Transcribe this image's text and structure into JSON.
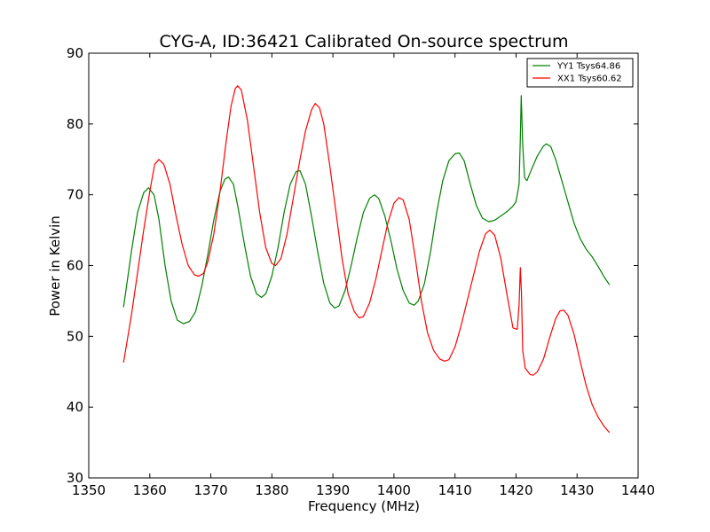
{
  "chart_data": {
    "type": "line",
    "title": "CYG-A, ID:36421 Calibrated On-source spectrum",
    "xlabel": "Frequency (MHz)",
    "ylabel": "Power in Kelvin",
    "xlim": [
      1350,
      1440
    ],
    "ylim": [
      30,
      90
    ],
    "xticks": [
      1350,
      1360,
      1370,
      1380,
      1390,
      1400,
      1410,
      1420,
      1430,
      1440
    ],
    "yticks": [
      30,
      40,
      50,
      60,
      70,
      80,
      90
    ],
    "grid": false,
    "legend": "top-right",
    "series": [
      {
        "name": "YY1 Tsys64.86",
        "color": "#008000",
        "points": [
          [
            1355.7,
            54.1
          ],
          [
            1357.0,
            62.0
          ],
          [
            1358.0,
            67.5
          ],
          [
            1359.0,
            70.3
          ],
          [
            1359.8,
            71.0
          ],
          [
            1360.7,
            70.0
          ],
          [
            1361.5,
            66.5
          ],
          [
            1362.5,
            60.0
          ],
          [
            1363.5,
            55.0
          ],
          [
            1364.5,
            52.3
          ],
          [
            1365.5,
            51.8
          ],
          [
            1366.5,
            52.1
          ],
          [
            1367.5,
            53.5
          ],
          [
            1368.5,
            57.0
          ],
          [
            1369.5,
            61.5
          ],
          [
            1370.5,
            66.5
          ],
          [
            1371.5,
            70.5
          ],
          [
            1372.3,
            72.2
          ],
          [
            1372.9,
            72.5
          ],
          [
            1373.7,
            71.5
          ],
          [
            1374.5,
            68.0
          ],
          [
            1375.5,
            63.0
          ],
          [
            1376.5,
            58.5
          ],
          [
            1377.5,
            56.0
          ],
          [
            1378.3,
            55.5
          ],
          [
            1379.0,
            56.0
          ],
          [
            1380.0,
            58.5
          ],
          [
            1381.0,
            62.5
          ],
          [
            1382.0,
            67.5
          ],
          [
            1383.0,
            71.5
          ],
          [
            1384.0,
            73.3
          ],
          [
            1384.6,
            73.4
          ],
          [
            1385.5,
            71.5
          ],
          [
            1386.5,
            67.0
          ],
          [
            1387.5,
            62.0
          ],
          [
            1388.5,
            57.5
          ],
          [
            1389.5,
            54.7
          ],
          [
            1390.3,
            54.0
          ],
          [
            1391.0,
            54.3
          ],
          [
            1392.0,
            56.5
          ],
          [
            1393.0,
            60.0
          ],
          [
            1394.0,
            64.0
          ],
          [
            1395.0,
            67.5
          ],
          [
            1396.0,
            69.5
          ],
          [
            1396.8,
            70.0
          ],
          [
            1397.5,
            69.5
          ],
          [
            1398.5,
            67.0
          ],
          [
            1399.5,
            63.5
          ],
          [
            1400.5,
            59.5
          ],
          [
            1401.5,
            56.5
          ],
          [
            1402.5,
            54.7
          ],
          [
            1403.3,
            54.4
          ],
          [
            1404.0,
            55.0
          ],
          [
            1405.0,
            57.5
          ],
          [
            1406.0,
            62.0
          ],
          [
            1407.0,
            67.5
          ],
          [
            1408.0,
            72.0
          ],
          [
            1409.0,
            74.8
          ],
          [
            1410.0,
            75.8
          ],
          [
            1410.7,
            75.9
          ],
          [
            1411.5,
            74.8
          ],
          [
            1412.5,
            71.5
          ],
          [
            1413.5,
            68.5
          ],
          [
            1414.5,
            66.7
          ],
          [
            1415.5,
            66.2
          ],
          [
            1416.5,
            66.4
          ],
          [
            1417.5,
            67.0
          ],
          [
            1418.5,
            67.6
          ],
          [
            1419.5,
            68.4
          ],
          [
            1420.0,
            69.0
          ],
          [
            1420.5,
            71.5
          ],
          [
            1420.7,
            78.0
          ],
          [
            1420.85,
            84.0
          ],
          [
            1421.1,
            77.0
          ],
          [
            1421.4,
            72.4
          ],
          [
            1421.8,
            72.0
          ],
          [
            1422.5,
            73.5
          ],
          [
            1423.5,
            75.5
          ],
          [
            1424.5,
            76.9
          ],
          [
            1425.0,
            77.2
          ],
          [
            1425.7,
            76.8
          ],
          [
            1426.5,
            75.0
          ],
          [
            1427.5,
            72.0
          ],
          [
            1428.5,
            69.0
          ],
          [
            1429.5,
            66.0
          ],
          [
            1430.5,
            63.8
          ],
          [
            1431.5,
            62.3
          ],
          [
            1432.5,
            61.2
          ],
          [
            1433.5,
            59.8
          ],
          [
            1434.5,
            58.3
          ],
          [
            1435.3,
            57.3
          ]
        ]
      },
      {
        "name": "XX1 Tsys60.62",
        "color": "#ff0000",
        "points": [
          [
            1355.7,
            46.3
          ],
          [
            1357.0,
            53.0
          ],
          [
            1358.0,
            59.0
          ],
          [
            1359.0,
            65.0
          ],
          [
            1360.0,
            70.5
          ],
          [
            1360.8,
            74.3
          ],
          [
            1361.5,
            75.0
          ],
          [
            1362.3,
            74.3
          ],
          [
            1363.3,
            71.5
          ],
          [
            1364.3,
            67.0
          ],
          [
            1365.3,
            63.0
          ],
          [
            1366.3,
            60.0
          ],
          [
            1367.3,
            58.7
          ],
          [
            1368.0,
            58.5
          ],
          [
            1368.8,
            58.9
          ],
          [
            1369.5,
            60.5
          ],
          [
            1370.5,
            64.5
          ],
          [
            1371.5,
            70.5
          ],
          [
            1372.5,
            77.5
          ],
          [
            1373.3,
            82.5
          ],
          [
            1374.0,
            85.0
          ],
          [
            1374.4,
            85.4
          ],
          [
            1375.0,
            84.8
          ],
          [
            1376.0,
            80.5
          ],
          [
            1377.0,
            74.0
          ],
          [
            1378.0,
            67.5
          ],
          [
            1379.0,
            62.5
          ],
          [
            1380.0,
            60.3
          ],
          [
            1380.6,
            60.0
          ],
          [
            1381.5,
            61.0
          ],
          [
            1382.5,
            64.5
          ],
          [
            1383.5,
            69.5
          ],
          [
            1384.5,
            74.5
          ],
          [
            1385.5,
            79.0
          ],
          [
            1386.5,
            82.0
          ],
          [
            1387.1,
            82.9
          ],
          [
            1387.8,
            82.3
          ],
          [
            1388.5,
            80.0
          ],
          [
            1389.5,
            74.0
          ],
          [
            1390.5,
            67.5
          ],
          [
            1391.5,
            61.0
          ],
          [
            1392.5,
            56.0
          ],
          [
            1393.5,
            53.5
          ],
          [
            1394.3,
            52.6
          ],
          [
            1395.0,
            52.8
          ],
          [
            1396.0,
            54.7
          ],
          [
            1397.0,
            58.0
          ],
          [
            1398.0,
            62.0
          ],
          [
            1399.0,
            66.0
          ],
          [
            1400.0,
            68.8
          ],
          [
            1400.8,
            69.6
          ],
          [
            1401.5,
            69.3
          ],
          [
            1402.5,
            66.5
          ],
          [
            1403.5,
            61.0
          ],
          [
            1404.5,
            55.0
          ],
          [
            1405.5,
            50.5
          ],
          [
            1406.5,
            48.0
          ],
          [
            1407.5,
            46.8
          ],
          [
            1408.3,
            46.5
          ],
          [
            1409.0,
            46.7
          ],
          [
            1410.0,
            48.5
          ],
          [
            1411.0,
            51.5
          ],
          [
            1412.0,
            55.0
          ],
          [
            1413.0,
            58.5
          ],
          [
            1414.0,
            62.0
          ],
          [
            1415.0,
            64.5
          ],
          [
            1415.7,
            65.0
          ],
          [
            1416.5,
            64.3
          ],
          [
            1417.5,
            61.0
          ],
          [
            1418.5,
            56.0
          ],
          [
            1419.5,
            51.2
          ],
          [
            1420.2,
            51.0
          ],
          [
            1420.5,
            54.5
          ],
          [
            1420.7,
            59.7
          ],
          [
            1420.9,
            56.0
          ],
          [
            1421.1,
            48.0
          ],
          [
            1421.5,
            45.5
          ],
          [
            1422.3,
            44.6
          ],
          [
            1422.8,
            44.5
          ],
          [
            1423.5,
            45.0
          ],
          [
            1424.5,
            46.8
          ],
          [
            1425.5,
            49.8
          ],
          [
            1426.5,
            52.5
          ],
          [
            1427.2,
            53.6
          ],
          [
            1427.8,
            53.7
          ],
          [
            1428.5,
            53.0
          ],
          [
            1429.5,
            50.3
          ],
          [
            1430.5,
            46.5
          ],
          [
            1431.5,
            43.0
          ],
          [
            1432.5,
            40.3
          ],
          [
            1433.5,
            38.5
          ],
          [
            1434.5,
            37.2
          ],
          [
            1435.3,
            36.4
          ]
        ]
      }
    ]
  }
}
